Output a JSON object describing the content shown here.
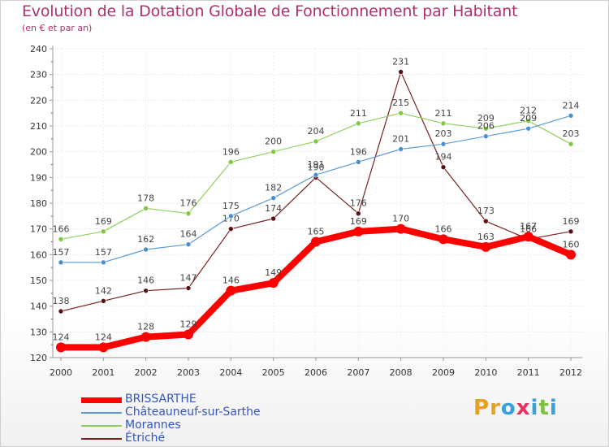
{
  "title": "Evolution de la Dotation Globale de Fonctionnement par Habitant",
  "subtitle": "(en € et par an)",
  "logo": {
    "letters": [
      "P",
      "r",
      "o",
      "x",
      "i",
      "t",
      "i"
    ],
    "colors": [
      "#e8a020",
      "#e8a020",
      "#3aa0d8",
      "#e83060",
      "#3aa0d8",
      "#80c040",
      "#3aa0d8"
    ]
  },
  "chart_data": {
    "type": "line",
    "x": [
      "2000",
      "2001",
      "2002",
      "2003",
      "2004",
      "2005",
      "2006",
      "2007",
      "2008",
      "2009",
      "2010",
      "2011",
      "2012"
    ],
    "ylim": [
      120,
      240
    ],
    "yticks": [
      120,
      130,
      140,
      150,
      160,
      170,
      180,
      190,
      200,
      210,
      220,
      230,
      240
    ],
    "grid": true,
    "legend_position": "bottom-left",
    "series": [
      {
        "name": "Étriché",
        "color": "#7a2020",
        "marker": "#5a1010",
        "width": 1.2,
        "values": [
          138,
          142,
          146,
          147,
          170,
          174,
          190,
          176,
          231,
          194,
          173,
          166,
          169
        ]
      },
      {
        "name": "Morannes",
        "color": "#90d060",
        "marker": "#80c840",
        "width": 1.2,
        "values": [
          166,
          169,
          178,
          176,
          196,
          200,
          204,
          211,
          215,
          211,
          209,
          212,
          203
        ]
      },
      {
        "name": "Châteauneuf-sur-Sarthe",
        "color": "#5b9bd5",
        "marker": "#4a90d0",
        "width": 1.2,
        "values": [
          157,
          157,
          162,
          164,
          175,
          182,
          191,
          196,
          201,
          203,
          206,
          209,
          214
        ]
      },
      {
        "name": "BRISSARTHE",
        "color": "#ff0000",
        "marker": "#ff0000",
        "width": 8,
        "values": [
          124,
          124,
          128,
          129,
          146,
          149,
          165,
          169,
          170,
          166,
          163,
          167,
          160
        ]
      }
    ],
    "legend_order": [
      "BRISSARTHE",
      "Châteauneuf-sur-Sarthe",
      "Morannes",
      "Étriché"
    ]
  }
}
